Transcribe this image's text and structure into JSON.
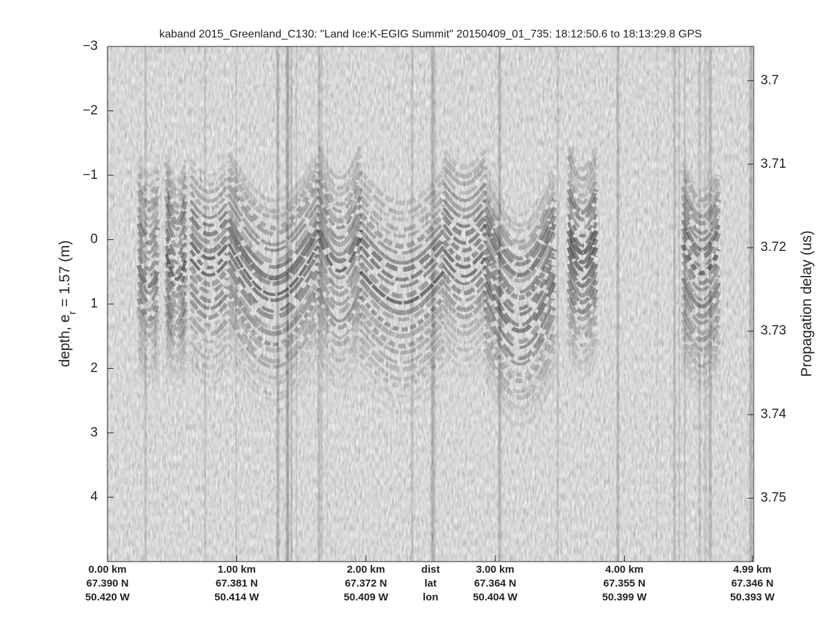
{
  "chart_data": {
    "type": "radargram",
    "title": "kaband 2015_Greenland_C130: \"Land Ice:K-EGIG Summit\"  20150409_01_735: 18:12:50.6 to 18:13:29.8 GPS",
    "ylabel_parts": [
      "depth, e",
      "r",
      " = 1.57 (m)"
    ],
    "y2label": "Propagation delay (us)",
    "ylim": [
      -3,
      5
    ],
    "yticks": [
      {
        "value": -3,
        "label": "−3"
      },
      {
        "value": -2,
        "label": "−2"
      },
      {
        "value": -1,
        "label": "−1"
      },
      0,
      1,
      2,
      3,
      4
    ],
    "y2lim": [
      3.6959,
      3.7576
    ],
    "y2ticks": [
      3.7,
      3.71,
      3.72,
      3.73,
      3.74,
      3.75
    ],
    "xlim": [
      0,
      5.0
    ],
    "xticks": [
      {
        "value": 0,
        "label": "0.00 km"
      },
      {
        "value": 1,
        "label": "1.00 km"
      },
      {
        "value": 2,
        "label": "2.00 km"
      },
      {
        "value": 3,
        "label": "3.00 km"
      },
      {
        "value": 4,
        "label": "4.00 km"
      },
      {
        "value": 4.99,
        "label": "4.99 km"
      }
    ],
    "lat_labels": [
      "67.390 N",
      "67.381 N",
      "67.372 N",
      "67.364 N",
      "67.355 N",
      "67.346 N"
    ],
    "lon_labels": [
      "50.420 W",
      "50.414 W",
      "50.409 W",
      "50.404 W",
      "50.399 W",
      "50.393 W"
    ],
    "row_names": [
      "dist",
      "lat",
      "lon"
    ]
  }
}
